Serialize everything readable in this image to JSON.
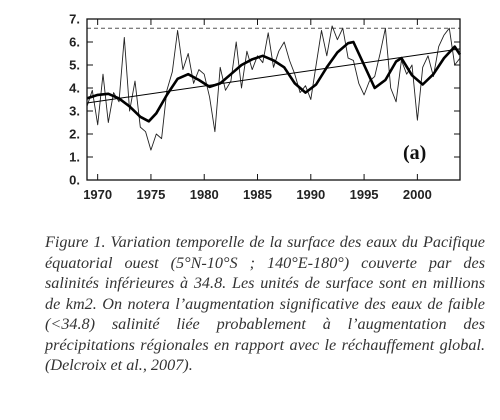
{
  "chart_data": {
    "type": "line",
    "panel_label": "(a)",
    "title": "",
    "xlabel": "",
    "ylabel": "",
    "xlim": [
      1969.0,
      2004.0
    ],
    "ylim": [
      0,
      7
    ],
    "x_ticks": [
      1970,
      1975,
      1980,
      1985,
      1990,
      1995,
      2000
    ],
    "y_ticks": [
      0,
      1,
      2,
      3,
      4,
      5,
      6,
      7
    ],
    "x_tick_labels": [
      "1970",
      "1975",
      "1980",
      "1985",
      "1990",
      "1995",
      "2000"
    ],
    "y_tick_labels": [
      "0.",
      "1.",
      "2.",
      "3.",
      "4.",
      "5.",
      "6.",
      "7."
    ],
    "reference_level": 6.6,
    "grid": false,
    "series": [
      {
        "style": "thin",
        "x": [
          1969.0,
          1969.5,
          1970.0,
          1970.5,
          1971.0,
          1971.5,
          1972.0,
          1972.5,
          1973.0,
          1973.5,
          1974.0,
          1974.5,
          1975.0,
          1975.5,
          1976.0,
          1976.5,
          1977.0,
          1977.5,
          1978.0,
          1978.5,
          1979.0,
          1979.5,
          1980.0,
          1980.5,
          1981.0,
          1981.5,
          1982.0,
          1982.5,
          1983.0,
          1983.5,
          1984.0,
          1984.5,
          1985.0,
          1985.5,
          1986.0,
          1986.5,
          1987.0,
          1987.5,
          1988.0,
          1988.5,
          1989.0,
          1989.5,
          1990.0,
          1990.5,
          1991.0,
          1991.5,
          1992.0,
          1992.5,
          1993.0,
          1993.5,
          1994.0,
          1994.5,
          1995.0,
          1995.5,
          1996.0,
          1996.5,
          1997.0,
          1997.5,
          1998.0,
          1998.5,
          1999.0,
          1999.5,
          2000.0,
          2000.5,
          2001.0,
          2001.5,
          2002.0,
          2002.5,
          2003.0,
          2003.5,
          2004.0
        ],
        "y": [
          3.2,
          3.9,
          2.4,
          4.6,
          2.5,
          3.8,
          3.4,
          6.2,
          3.0,
          4.3,
          2.3,
          2.1,
          1.3,
          2.0,
          1.8,
          3.9,
          4.7,
          6.5,
          4.8,
          5.5,
          4.2,
          4.8,
          4.6,
          3.6,
          2.1,
          4.9,
          3.9,
          4.3,
          6.0,
          4.0,
          5.6,
          4.8,
          5.4,
          5.1,
          6.4,
          4.9,
          5.6,
          6.0,
          5.2,
          4.6,
          3.8,
          4.1,
          3.5,
          5.0,
          6.5,
          5.4,
          6.7,
          6.1,
          6.6,
          5.3,
          5.2,
          4.2,
          3.7,
          4.3,
          4.5,
          5.5,
          6.6,
          4.0,
          3.4,
          5.2,
          4.6,
          5.0,
          2.6,
          4.9,
          5.4,
          4.5,
          5.8,
          6.3,
          6.6,
          5.0,
          5.3
        ]
      },
      {
        "style": "smoothed",
        "x": [
          1969.0,
          1970.0,
          1971.0,
          1972.0,
          1973.0,
          1974.0,
          1974.8,
          1975.5,
          1976.5,
          1977.5,
          1978.5,
          1979.5,
          1980.5,
          1981.5,
          1982.5,
          1983.5,
          1984.5,
          1985.5,
          1986.5,
          1987.5,
          1988.5,
          1989.5,
          1990.5,
          1991.5,
          1992.5,
          1993.5,
          1994.0,
          1995.0,
          1996.0,
          1997.0,
          1998.0,
          1998.5,
          1999.5,
          2000.5,
          2001.5,
          2002.5,
          2003.5,
          2004.0
        ],
        "y": [
          3.55,
          3.7,
          3.75,
          3.55,
          3.2,
          2.75,
          2.55,
          2.9,
          3.7,
          4.4,
          4.6,
          4.35,
          4.05,
          4.2,
          4.6,
          5.0,
          5.25,
          5.4,
          5.2,
          4.9,
          4.2,
          3.8,
          4.15,
          4.9,
          5.55,
          5.95,
          6.0,
          5.0,
          4.0,
          4.35,
          5.15,
          5.3,
          4.55,
          4.15,
          4.6,
          5.3,
          5.8,
          5.45
        ]
      },
      {
        "style": "trend",
        "x": [
          1969.0,
          2004.0
        ],
        "y": [
          3.35,
          5.7
        ]
      }
    ]
  },
  "caption": "Figure 1. Variation temporelle de la surface des eaux du Pacifique équatorial ouest (5°N-10°S ; 140°E-180°) couverte par des salinités inférieures à 34.8. Les unités de surface sont en millions de km2. On notera l’augmentation significative des eaux de faible (<34.8) salinité liée probablement à l’augmentation des précipitations régionales en rapport avec le réchauffement global. (Delcroix et al., 2007)."
}
